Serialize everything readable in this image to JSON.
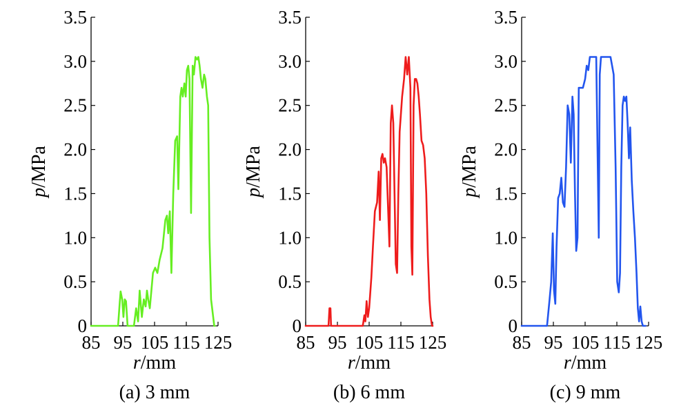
{
  "chart_data": [
    {
      "type": "line",
      "caption": "(a) 3 mm",
      "xlabel_var": "r",
      "xlabel_unit": "/mm",
      "ylabel_var": "p",
      "ylabel_unit": "/MPa",
      "xlim": [
        85,
        125
      ],
      "ylim": [
        0,
        3.5
      ],
      "xticks": [
        85,
        95,
        105,
        115,
        125
      ],
      "xtick_labels": [
        "85",
        "95",
        "105",
        "115",
        "125"
      ],
      "yticks": [
        0,
        0.5,
        1.0,
        1.5,
        2.0,
        2.5,
        3.0,
        3.5
      ],
      "ytick_labels": [
        "0",
        "0.5",
        "1.0",
        "1.5",
        "2.0",
        "2.5",
        "3.0",
        "3.5"
      ],
      "grid": false,
      "color": "#66ee22",
      "series": [
        {
          "x": [
            85,
            93.5,
            94,
            94.3,
            94.8,
            95.2,
            95.6,
            96,
            96.5,
            97.2,
            98.5,
            99.2,
            99.8,
            100.3,
            101,
            101.6,
            102.2,
            102.6,
            103,
            103.5,
            104.5,
            105.2,
            105.9,
            106.6,
            107.5,
            108.4,
            108.9,
            109.3,
            109.8,
            110.3,
            110.9,
            111.5,
            112.1,
            112.5,
            113.1,
            113.5,
            113.9,
            114.4,
            114.8,
            115.2,
            115.6,
            116,
            116.5,
            117,
            117.4,
            117.9,
            118.4,
            118.8,
            119.2,
            119.6,
            120.1,
            120.6,
            121,
            121.5,
            121.9,
            122.3,
            122.8,
            123.3,
            123.8,
            124
          ],
          "y": [
            0,
            0,
            0.25,
            0.39,
            0.3,
            0.1,
            0.3,
            0.28,
            0,
            0,
            0,
            0.2,
            0.05,
            0.4,
            0.1,
            0.3,
            0.22,
            0.4,
            0.3,
            0.2,
            0.6,
            0.66,
            0.6,
            0.75,
            0.88,
            1.2,
            1.25,
            1.05,
            1.3,
            0.6,
            1.5,
            2.1,
            2.15,
            1.55,
            2.6,
            2.7,
            2.6,
            2.75,
            2.6,
            2.9,
            2.95,
            2.8,
            1.28,
            2.95,
            2.85,
            3.05,
            3.02,
            3.05,
            2.95,
            2.8,
            2.7,
            2.85,
            2.8,
            2.6,
            2.5,
            1.0,
            0.3,
            0.15,
            0,
            0
          ]
        }
      ]
    },
    {
      "type": "line",
      "caption": "(b) 6 mm",
      "xlabel_var": "r",
      "xlabel_unit": "/mm",
      "ylabel_var": "p",
      "ylabel_unit": "/MPa",
      "xlim": [
        85,
        125
      ],
      "ylim": [
        0,
        3.5
      ],
      "xticks": [
        85,
        95,
        105,
        115,
        125
      ],
      "xtick_labels": [
        "85",
        "95",
        "105",
        "115",
        "125"
      ],
      "yticks": [
        0,
        0.5,
        1.0,
        1.5,
        2.0,
        2.5,
        3.0,
        3.5
      ],
      "ytick_labels": [
        "0",
        "0.5",
        "1.0",
        "1.5",
        "2.0",
        "2.5",
        "3.0",
        "3.5"
      ],
      "grid": false,
      "color": "#ee1c1c",
      "series": [
        {
          "x": [
            85,
            92.2,
            92.5,
            92.8,
            93,
            93.2,
            103,
            103.5,
            103.8,
            104.2,
            104.6,
            105,
            105.3,
            105.7,
            106.2,
            106.8,
            107.5,
            108,
            108.4,
            108.8,
            109.2,
            109.6,
            110,
            110.5,
            111,
            111.4,
            111.8,
            112.2,
            112.6,
            113,
            113.4,
            113.8,
            114.2,
            114.6,
            115,
            115.4,
            116,
            116.5,
            117,
            117.5,
            118,
            118.3,
            118.6,
            119,
            119.4,
            119.8,
            120.2,
            120.6,
            121,
            121.5,
            122,
            122.5,
            123,
            123.5,
            124,
            124.4,
            124.8,
            125
          ],
          "y": [
            0,
            0,
            0.2,
            0.2,
            0,
            0,
            0,
            0.12,
            0.05,
            0.28,
            0.1,
            0.2,
            0.35,
            0.55,
            0.9,
            1.3,
            1.4,
            1.75,
            1.2,
            1.9,
            1.95,
            1.85,
            1.9,
            1.8,
            1.3,
            0.9,
            2.3,
            2.5,
            2.3,
            1.5,
            0.7,
            0.6,
            1.5,
            2.2,
            2.4,
            2.6,
            2.8,
            3.05,
            2.85,
            3.05,
            2.7,
            0.9,
            0.58,
            2.5,
            2.8,
            2.8,
            2.75,
            2.6,
            2.4,
            2.1,
            2.05,
            1.9,
            1.5,
            0.8,
            0.3,
            0.1,
            0,
            0
          ]
        }
      ]
    },
    {
      "type": "line",
      "caption": "(c) 9 mm",
      "xlabel_var": "r",
      "xlabel_unit": "/mm",
      "ylabel_var": "p",
      "ylabel_unit": "/MPa",
      "xlim": [
        85,
        125
      ],
      "ylim": [
        0,
        3.5
      ],
      "xticks": [
        85,
        95,
        105,
        115,
        125
      ],
      "xtick_labels": [
        "85",
        "95",
        "105",
        "115",
        "125"
      ],
      "yticks": [
        0,
        0.5,
        1.0,
        1.5,
        2.0,
        2.5,
        3.0,
        3.5
      ],
      "ytick_labels": [
        "0",
        "0.5",
        "1.0",
        "1.5",
        "2.0",
        "2.5",
        "3.0",
        "3.5"
      ],
      "grid": false,
      "color": "#2255ee",
      "series": [
        {
          "x": [
            85,
            93,
            93.8,
            94.3,
            94.8,
            95.2,
            95.6,
            96,
            96.5,
            97,
            97.5,
            98,
            98.5,
            99,
            99.5,
            100,
            100.5,
            101,
            101.4,
            101.8,
            102.2,
            102.6,
            103,
            103.4,
            103.8,
            104.3,
            105,
            105.5,
            106,
            106.5,
            107,
            107.5,
            108,
            108.5,
            109.3,
            109.6,
            110,
            110.5,
            111,
            112,
            113,
            114,
            114.6,
            115.1,
            115.6,
            116,
            116.4,
            116.8,
            117.2,
            117.6,
            118,
            118.4,
            118.8,
            119.2,
            119.7,
            120.2,
            120.7,
            121.2,
            121.6,
            122,
            122.4,
            122.8,
            123.2,
            124
          ],
          "y": [
            0,
            0,
            0.3,
            0.5,
            1.05,
            0.4,
            0.25,
            0.9,
            1.45,
            1.5,
            1.68,
            1.4,
            1.35,
            1.8,
            2.5,
            2.4,
            1.85,
            2.6,
            2.4,
            1.5,
            0.85,
            1.0,
            2.7,
            2.7,
            2.7,
            2.7,
            2.8,
            2.95,
            2.9,
            3.05,
            3.05,
            3.05,
            3.05,
            3.05,
            1.0,
            2.85,
            3.05,
            3.05,
            3.05,
            3.05,
            3.05,
            2.85,
            1.8,
            0.5,
            0.38,
            0.6,
            1.8,
            2.5,
            2.6,
            2.55,
            2.6,
            2.3,
            1.9,
            2.25,
            1.65,
            1.3,
            1.0,
            0.6,
            0.2,
            0.05,
            0.22,
            0.05,
            0,
            0
          ]
        }
      ]
    }
  ]
}
